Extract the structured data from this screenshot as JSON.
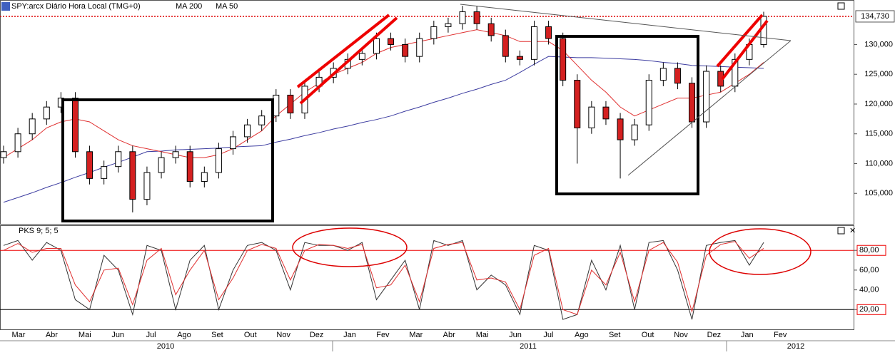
{
  "chart_data": [
    {
      "type": "candlestick",
      "title": "SPY:arcx Diário Hora Local (TMG+0)",
      "open": [
        111000,
        112000,
        115000,
        117500,
        119500,
        121000,
        112000,
        107500,
        109500,
        112000,
        104000,
        108500,
        111000,
        112000,
        107000,
        108500,
        112500,
        114500,
        116500,
        118000,
        121500,
        118500,
        123000,
        124500,
        126000,
        127500,
        128500,
        131000,
        130000,
        128000,
        131000,
        133000,
        133500,
        135500,
        133500,
        131500,
        128000,
        127500,
        133000,
        131000,
        124000,
        116000,
        119500,
        117500,
        114000,
        116500,
        124000,
        126000,
        123500,
        117000,
        125500,
        123000,
        127500,
        130000
      ],
      "high": [
        113000,
        116000,
        118500,
        120500,
        122000,
        122000,
        113000,
        110500,
        113000,
        113000,
        109500,
        112000,
        113000,
        113000,
        109500,
        113500,
        115500,
        117500,
        119000,
        122500,
        122500,
        124000,
        125500,
        127000,
        128500,
        129500,
        132000,
        132000,
        131000,
        132000,
        134000,
        134500,
        136500,
        136500,
        134500,
        132500,
        129000,
        134000,
        134000,
        132000,
        125000,
        120500,
        120500,
        118500,
        117500,
        125000,
        127000,
        127000,
        124500,
        126500,
        126500,
        128500,
        131000,
        135500
      ],
      "low": [
        110000,
        111000,
        114000,
        116500,
        118500,
        111000,
        106500,
        106500,
        108500,
        101800,
        103000,
        107500,
        110000,
        106000,
        106000,
        107500,
        111500,
        113500,
        115500,
        117000,
        117500,
        117500,
        122000,
        123500,
        125000,
        126500,
        127500,
        129000,
        127000,
        127000,
        130000,
        132000,
        132500,
        132500,
        130500,
        127000,
        126500,
        126500,
        130000,
        123000,
        110000,
        115000,
        116500,
        107500,
        113000,
        115500,
        123000,
        122500,
        116000,
        116000,
        122000,
        122000,
        126500,
        129500
      ],
      "close": [
        112000,
        115000,
        117500,
        119500,
        121000,
        112000,
        107500,
        109500,
        112000,
        104000,
        108500,
        111000,
        112000,
        107000,
        108500,
        112500,
        114500,
        116500,
        118000,
        121500,
        118500,
        123000,
        124500,
        126000,
        127500,
        128500,
        131000,
        130000,
        128000,
        131000,
        133000,
        133500,
        135500,
        133500,
        131500,
        128000,
        127500,
        133000,
        131000,
        124000,
        116000,
        119500,
        117500,
        114000,
        116500,
        124000,
        126000,
        123500,
        117000,
        125500,
        123000,
        127500,
        130000,
        134730
      ],
      "up_color": "#ffffff",
      "down_color": "#d42020",
      "last_label": "134,730",
      "series": [
        {
          "name": "MA 200",
          "color": "#3c3ca0",
          "values": [
            103500,
            104300,
            105100,
            106000,
            106800,
            107700,
            108500,
            109400,
            110200,
            111100,
            112000,
            112100,
            112300,
            112400,
            112500,
            112600,
            112800,
            112900,
            113000,
            113600,
            114100,
            114700,
            115200,
            115800,
            116300,
            116900,
            117400,
            118000,
            118800,
            119500,
            120300,
            121000,
            121800,
            122500,
            123300,
            124000,
            125300,
            126700,
            128000,
            127900,
            127800,
            127800,
            127700,
            127600,
            127500,
            127300,
            127000,
            126800,
            126500,
            126400,
            126300,
            126200,
            126100,
            126000
          ]
        },
        {
          "name": "MA 50",
          "color": "#e03030",
          "values": [
            111000,
            112500,
            114000,
            116000,
            117000,
            117500,
            117000,
            115500,
            114000,
            113000,
            112500,
            112000,
            111500,
            111000,
            111000,
            111500,
            112500,
            114000,
            115500,
            118000,
            120000,
            122000,
            123500,
            125000,
            126000,
            127000,
            128500,
            129500,
            130000,
            130500,
            131000,
            131500,
            132000,
            132500,
            132000,
            131500,
            130500,
            130500,
            130500,
            129000,
            126500,
            124000,
            122000,
            119500,
            118000,
            119000,
            120000,
            121000,
            121000,
            121500,
            122000,
            123500,
            125000,
            127000
          ]
        }
      ],
      "ylim": [
        100000,
        137000
      ],
      "yticks": [
        {
          "value": 105000,
          "label": "105,000"
        },
        {
          "value": 110000,
          "label": "110,000"
        },
        {
          "value": 115000,
          "label": "115,000"
        },
        {
          "value": 120000,
          "label": "120,000"
        },
        {
          "value": 125000,
          "label": "125,000"
        },
        {
          "value": 130000,
          "label": "130,000"
        }
      ]
    },
    {
      "type": "line",
      "title": "PKS 9; 5; 5",
      "series": [
        {
          "color": "#333333",
          "values": [
            85,
            90,
            70,
            88,
            80,
            30,
            20,
            75,
            60,
            15,
            85,
            80,
            20,
            70,
            85,
            20,
            60,
            85,
            88,
            80,
            40,
            88,
            85,
            85,
            80,
            88,
            30,
            50,
            70,
            20,
            90,
            85,
            90,
            40,
            55,
            45,
            15,
            85,
            80,
            10,
            15,
            70,
            40,
            85,
            20,
            88,
            90,
            60,
            10,
            85,
            88,
            90,
            65,
            88
          ]
        },
        {
          "color": "#e03030",
          "values": [
            80,
            87,
            78,
            82,
            82,
            45,
            28,
            60,
            62,
            25,
            70,
            82,
            35,
            60,
            80,
            30,
            52,
            80,
            86,
            82,
            50,
            80,
            86,
            85,
            82,
            86,
            42,
            45,
            65,
            28,
            82,
            86,
            88,
            50,
            52,
            48,
            20,
            75,
            82,
            20,
            15,
            60,
            45,
            78,
            28,
            80,
            88,
            68,
            18,
            75,
            86,
            89,
            72,
            82
          ]
        }
      ],
      "ylim": [
        0,
        104
      ],
      "yticks": [
        {
          "value": 20,
          "label": "20,00"
        },
        {
          "value": 40,
          "label": "40,00"
        },
        {
          "value": 60,
          "label": "60,00"
        },
        {
          "value": 80,
          "label": "80,00"
        }
      ],
      "months": [
        "Mar",
        "Abr",
        "Mai",
        "Jun",
        "Jul",
        "Ago",
        "Set",
        "Out",
        "Nov",
        "Dez",
        "Jan",
        "Fev",
        "Mar",
        "Abr",
        "Mai",
        "Jun",
        "Jul",
        "Ago",
        "Set",
        "Out",
        "Nov",
        "Dez",
        "Jan",
        "Fev"
      ],
      "years": [
        "2010",
        "2011",
        "2012"
      ]
    }
  ]
}
